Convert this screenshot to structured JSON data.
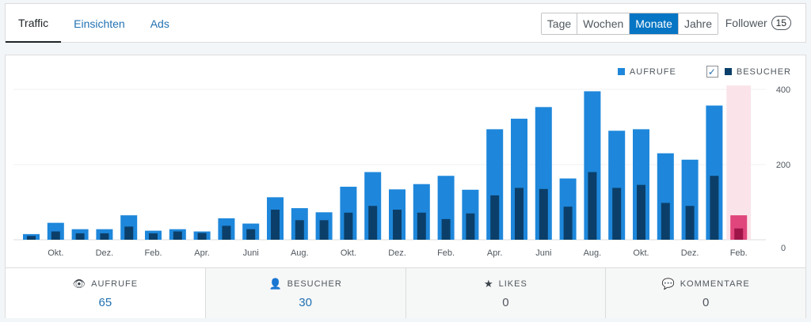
{
  "tabs": [
    {
      "label": "Traffic"
    },
    {
      "label": "Einsichten"
    },
    {
      "label": "Ads"
    }
  ],
  "periods": [
    "Tage",
    "Wochen",
    "Monate",
    "Jahre"
  ],
  "selected_period": "Monate",
  "follower": {
    "label": "Follower",
    "count": "15"
  },
  "legend": {
    "views": "AUFRUFE",
    "visitors": "BESUCHER",
    "visitors_checked": true
  },
  "colors": {
    "views": "#1e87db",
    "visitors": "#0b3f6a",
    "highlight_bg": "#fae4ea",
    "highlight_bar": "#e0457b",
    "highlight_bar_dark": "#a01549"
  },
  "chart_data": {
    "type": "bar",
    "categories": [
      "",
      "Okt.",
      "",
      "Dez.",
      "",
      "Feb.",
      "",
      "Apr.",
      "",
      "Juni",
      "",
      "Aug.",
      "",
      "Okt.",
      "",
      "Dez.",
      "",
      "Feb.",
      "",
      "Apr.",
      "",
      "Juni",
      "",
      "Aug.",
      "",
      "Okt.",
      "",
      "Dez.",
      "",
      "Feb."
    ],
    "series": [
      {
        "name": "AUFRUFE",
        "values": [
          15,
          45,
          28,
          28,
          65,
          24,
          28,
          22,
          57,
          43,
          113,
          84,
          73,
          141,
          180,
          134,
          148,
          170,
          133,
          294,
          322,
          353,
          163,
          395,
          290,
          294,
          230,
          213,
          357,
          65
        ]
      },
      {
        "name": "BESUCHER",
        "values": [
          10,
          22,
          17,
          17,
          35,
          17,
          22,
          18,
          37,
          28,
          80,
          52,
          52,
          72,
          90,
          80,
          72,
          55,
          70,
          118,
          138,
          135,
          88,
          180,
          138,
          146,
          98,
          90,
          170,
          30
        ]
      }
    ],
    "y_ticks": [
      "400",
      "200",
      "0"
    ],
    "ylim": [
      0,
      400
    ],
    "highlighted_index": 29
  },
  "stats": [
    {
      "icon": "eye-icon",
      "label": "AUFRUFE",
      "value": "65"
    },
    {
      "icon": "person-icon",
      "label": "BESUCHER",
      "value": "30"
    },
    {
      "icon": "star-icon",
      "label": "LIKES",
      "value": "0"
    },
    {
      "icon": "comment-icon",
      "label": "KOMMENTARE",
      "value": "0"
    }
  ]
}
